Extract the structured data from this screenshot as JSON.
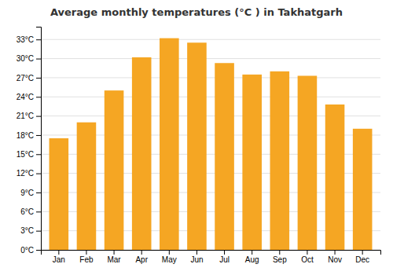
{
  "chart_data": {
    "type": "bar",
    "title": "Average monthly temperatures (°C ) in Takhatgarh",
    "categories": [
      "Jan",
      "Feb",
      "Mar",
      "Apr",
      "May",
      "Jun",
      "Jul",
      "Aug",
      "Sep",
      "Oct",
      "Nov",
      "Dec"
    ],
    "values": [
      17.5,
      20.0,
      25.0,
      30.2,
      33.2,
      32.5,
      29.3,
      27.5,
      28.0,
      27.3,
      22.8,
      19.0
    ],
    "color": "#F5A623",
    "ylim": [
      0,
      35
    ],
    "yticks": [
      {
        "value": 0,
        "label": "0°C"
      },
      {
        "value": 3,
        "label": "3°C"
      },
      {
        "value": 6,
        "label": "6°C"
      },
      {
        "value": 9,
        "label": "9°C"
      },
      {
        "value": 12,
        "label": "12°C"
      },
      {
        "value": 15,
        "label": "15°C"
      },
      {
        "value": 18,
        "label": "18°C"
      },
      {
        "value": 21,
        "label": "21°C"
      },
      {
        "value": 24,
        "label": "24°C"
      },
      {
        "value": 27,
        "label": "27°C"
      },
      {
        "value": 30,
        "label": "30°C"
      },
      {
        "value": 33,
        "label": "33°C"
      }
    ],
    "grid": true
  }
}
